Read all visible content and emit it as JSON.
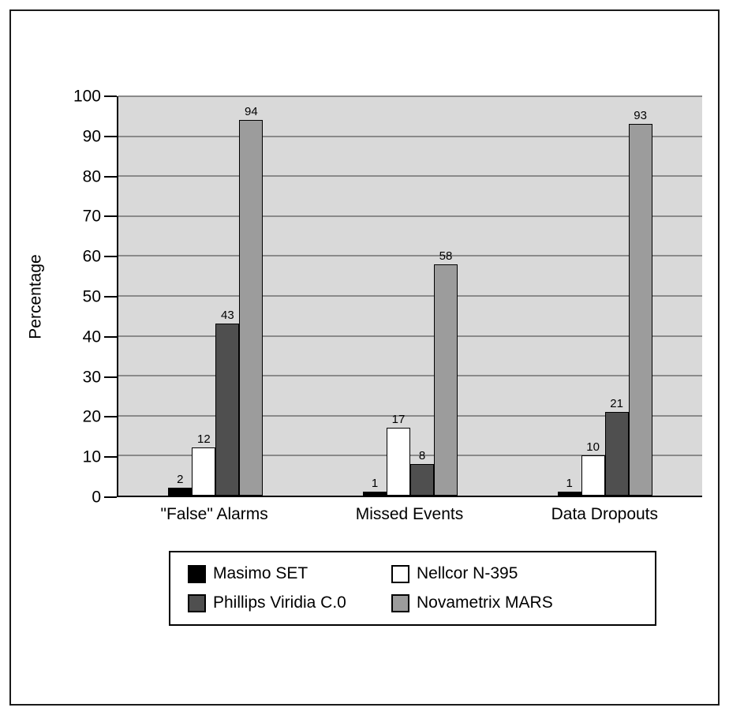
{
  "figure": {
    "background": "#ffffff",
    "border_color": "#1a1a1a"
  },
  "chart_data": {
    "type": "bar",
    "title": "",
    "xlabel": "",
    "ylabel": "Percentage",
    "ylim": [
      0,
      100
    ],
    "yticks": [
      0,
      10,
      20,
      30,
      40,
      50,
      60,
      70,
      80,
      90,
      100
    ],
    "grid": true,
    "plot_background": "#d9d9d9",
    "gridline_color": "#8a8a8a",
    "legend_position": "bottom",
    "bar_value_labels": true,
    "categories": [
      "\"False\" Alarms",
      "Missed Events",
      "Data Dropouts"
    ],
    "series": [
      {
        "name": "Masimo SET",
        "color": "#000000",
        "values": [
          2,
          1,
          1
        ]
      },
      {
        "name": "Nellcor N-395",
        "color": "#ffffff",
        "values": [
          12,
          17,
          10
        ]
      },
      {
        "name": "Phillips Viridia C.0",
        "color": "#4f4f4f",
        "values": [
          43,
          8,
          21
        ]
      },
      {
        "name": "Novametrix MARS",
        "color": "#9c9c9c",
        "values": [
          94,
          58,
          93
        ]
      }
    ]
  }
}
